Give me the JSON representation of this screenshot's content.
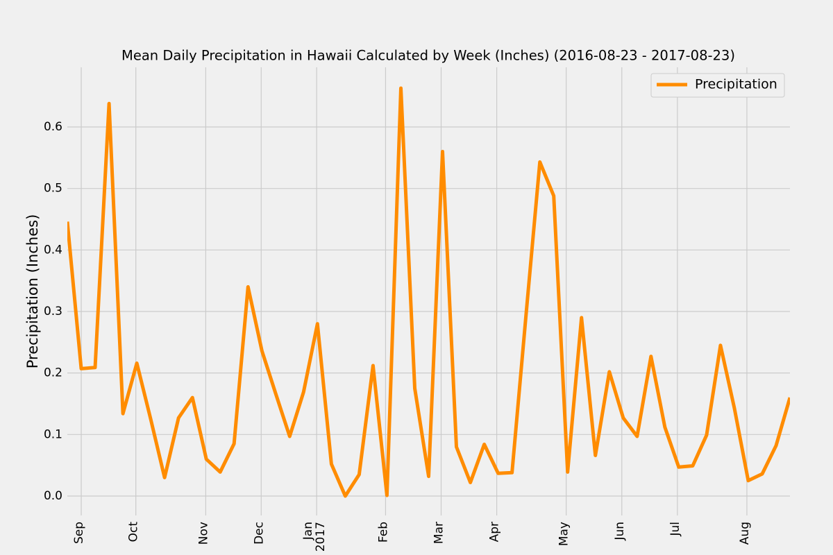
{
  "chart_data": {
    "type": "line",
    "title": "Mean Daily Precipitation in Hawaii Calculated by Week (Inches) (2016-08-23 - 2017-08-23)",
    "y_label": "Precipitation (Inches)",
    "x": [
      0,
      1,
      2,
      3,
      4,
      5,
      6,
      7,
      8,
      9,
      10,
      11,
      12,
      13,
      14,
      15,
      16,
      17,
      18,
      19,
      20,
      21,
      22,
      23,
      24,
      25,
      26,
      27,
      28,
      29,
      30,
      31,
      32,
      33,
      34,
      35,
      36,
      37,
      38,
      39,
      40,
      41,
      42,
      43,
      44,
      45,
      46,
      47,
      48,
      49,
      50,
      51,
      52
    ],
    "series": [
      {
        "name": "Precipitation",
        "color": "#ff8c00",
        "values": [
          0.446,
          0.207,
          0.209,
          0.638,
          0.134,
          0.216,
          0.125,
          0.03,
          0.127,
          0.16,
          0.06,
          0.039,
          0.085,
          0.34,
          0.236,
          0.166,
          0.097,
          0.169,
          0.28,
          0.052,
          0.0,
          0.035,
          0.212,
          0.001,
          0.663,
          0.175,
          0.032,
          0.56,
          0.08,
          0.022,
          0.084,
          0.037,
          0.038,
          0.292,
          0.543,
          0.488,
          0.039,
          0.29,
          0.066,
          0.202,
          0.127,
          0.097,
          0.227,
          0.112,
          0.047,
          0.049,
          0.099,
          0.245,
          0.143,
          0.025,
          0.036,
          0.082,
          0.16
        ]
      }
    ],
    "xlim": [
      0,
      52
    ],
    "xticks": [
      {
        "value": 1.0,
        "label": "Sep"
      },
      {
        "value": 4.93,
        "label": "Oct"
      },
      {
        "value": 9.96,
        "label": "Nov"
      },
      {
        "value": 13.95,
        "label": "Dec"
      },
      {
        "value": 17.94,
        "label": "Jan\n2017"
      },
      {
        "value": 22.9,
        "label": "Feb"
      },
      {
        "value": 26.9,
        "label": "Mar"
      },
      {
        "value": 30.9,
        "label": "Apr"
      },
      {
        "value": 35.9,
        "label": "May"
      },
      {
        "value": 39.9,
        "label": "Jun"
      },
      {
        "value": 43.9,
        "label": "Jul"
      },
      {
        "value": 48.9,
        "label": "Aug"
      }
    ],
    "ylim": [
      -0.0316,
      0.697
    ],
    "yticks": [
      {
        "value": 0,
        "label": "0.0"
      },
      0.1,
      0.2,
      0.3,
      0.4,
      0.5,
      0.6
    ],
    "grid": true,
    "legend": "upper right"
  }
}
